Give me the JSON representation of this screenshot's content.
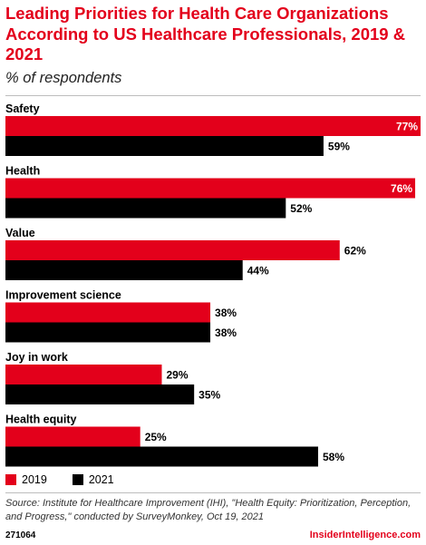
{
  "header": {
    "title": "Leading Priorities for Health Care Organizations According to US Healthcare Professionals, 2019 & 2021",
    "subtitle": "% of respondents"
  },
  "chart_data": {
    "type": "bar",
    "orientation": "horizontal",
    "categories": [
      "Safety",
      "Health",
      "Value",
      "Improvement science",
      "Joy in work",
      "Health equity"
    ],
    "series": [
      {
        "name": "2019",
        "color": "#e3001b",
        "values": [
          77,
          76,
          62,
          38,
          29,
          25
        ]
      },
      {
        "name": "2021",
        "color": "#000000",
        "values": [
          59,
          52,
          44,
          38,
          35,
          58
        ]
      }
    ],
    "value_suffix": "%",
    "xlim": [
      0,
      77
    ],
    "legend_position": "bottom-left",
    "grid": false
  },
  "legend": [
    {
      "label": "2019",
      "color": "#e3001b"
    },
    {
      "label": "2021",
      "color": "#000000"
    }
  ],
  "footer": {
    "source": "Source: Institute for Healthcare Improvement (IHI), \"Health Equity: Prioritization, Perception, and Progress,\" conducted by SurveyMonkey, Oct 19, 2021",
    "chart_id": "271064",
    "brand": "InsiderIntelligence.com"
  }
}
